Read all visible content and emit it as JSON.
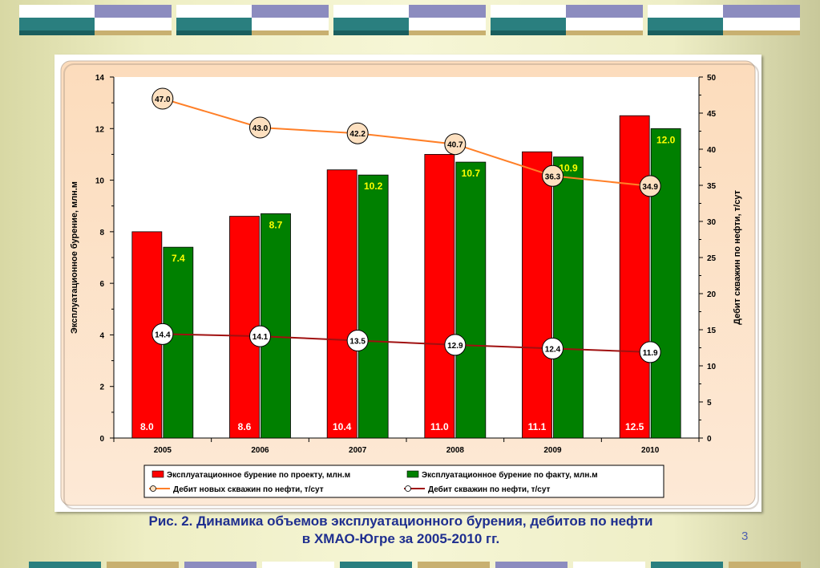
{
  "caption": {
    "line1": "Рис. 2. Динамика объемов эксплуатационного бурения, дебитов по нефти",
    "line2": "в ХМАО-Югре за 2005-2010 гг."
  },
  "page_number": "3",
  "colors": {
    "bar_project": "#ff0000",
    "bar_fact": "#008000",
    "line_new_wells": "#ff7f27",
    "line_wells": "#a01010",
    "plot_bg": "#fde3c8",
    "value_label_project": "#ffffff",
    "value_label_fact": "#ffff00"
  },
  "chart_data": {
    "type": "bar",
    "categories": [
      "2005",
      "2006",
      "2007",
      "2008",
      "2009",
      "2010"
    ],
    "series": [
      {
        "name": "Эксплуатационное бурение по проекту, млн.м",
        "kind": "bar",
        "axis": "left",
        "values": [
          8.0,
          8.6,
          10.4,
          11.0,
          11.1,
          12.5
        ]
      },
      {
        "name": "Эксплуатационное бурение по факту, млн.м",
        "kind": "bar",
        "axis": "left",
        "values": [
          7.4,
          8.7,
          10.2,
          10.7,
          10.9,
          12.0
        ]
      },
      {
        "name": "Дебит новых скважин по нефти, т/сут",
        "kind": "line",
        "axis": "right",
        "values": [
          47.0,
          43.0,
          42.2,
          40.7,
          36.3,
          34.9
        ]
      },
      {
        "name": "Дебит скважин по нефти, т/сут",
        "kind": "line",
        "axis": "right",
        "values": [
          14.4,
          14.1,
          13.5,
          12.9,
          12.4,
          11.9
        ]
      }
    ],
    "ylabel": "Эксплуатационное бурение, млн.м",
    "y2label": "Дебит скважин по нефти, т/сут",
    "ylim": [
      0,
      14
    ],
    "y2lim": [
      0,
      50
    ],
    "yticks": [
      "0",
      "2",
      "4",
      "6",
      "8",
      "10",
      "12",
      "14"
    ],
    "y2ticks": [
      "0",
      "5",
      "10",
      "15",
      "20",
      "25",
      "30",
      "35",
      "40",
      "45",
      "50"
    ],
    "grid": false,
    "legend_position": "bottom"
  }
}
